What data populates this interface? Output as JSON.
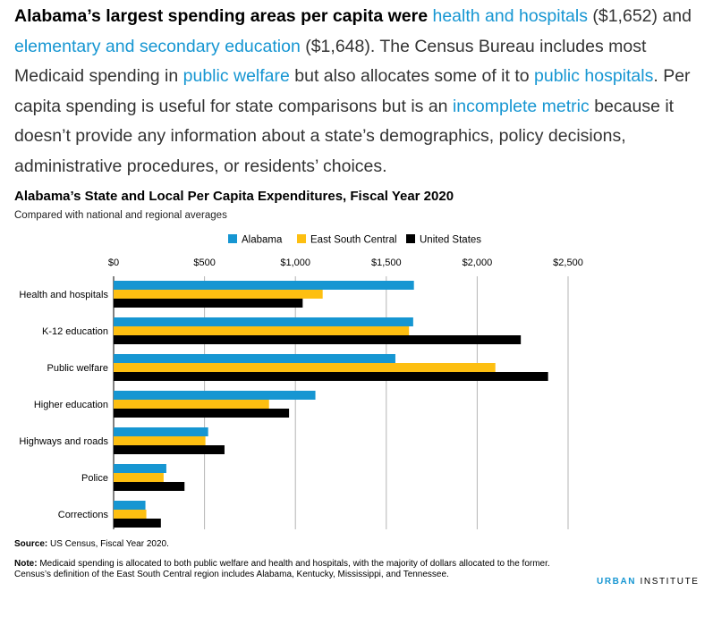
{
  "intro": {
    "lead": "Alabama’s largest spending areas per capita were",
    "link_health": "health and hospitals",
    "value_health": "($1,652)",
    "and": "and",
    "link_education": "elementary and secondary education",
    "value_education": "($1,648). The Census Bureau includes most Medicaid spending in",
    "link_welfare": "public welfare",
    "but_also": "but also allocates some of it to",
    "link_hospitals": "public hospitals",
    "per_capita": ". Per capita spending is useful for state comparisons but is an",
    "link_metric": "incomplete metric",
    "rest": "because it doesn’t provide any information about a state’s demographics, policy decisions, administrative procedures, or residents’ choices."
  },
  "footer": {
    "source_label": "Source:",
    "source_text": "US Census, Fiscal Year 2020.",
    "note_label": "Note:",
    "note_text": "Medicaid spending is allocated to both public welfare and health and hospitals, with the majority of dollars allocated to the former. Census’s definition of the East South Central region includes Alabama, Kentucky, Mississippi, and Tennessee.",
    "brand_accent": "URBAN",
    "brand_rest": "INSTITUTE"
  },
  "chart_data": {
    "type": "bar",
    "orientation": "horizontal",
    "title": "Alabama’s State and Local Per Capita Expenditures, Fiscal Year 2020",
    "subtitle": "Compared with national and regional averages",
    "categories": [
      "Health and hospitals",
      "K-12 education",
      "Public welfare",
      "Higher education",
      "Highways and roads",
      "Police",
      "Corrections"
    ],
    "series": [
      {
        "name": "Alabama",
        "color": "#1696d2",
        "values": [
          1652,
          1648,
          1550,
          1110,
          520,
          290,
          175
        ]
      },
      {
        "name": "East South Central",
        "color": "#fdbf11",
        "values": [
          1150,
          1625,
          2100,
          855,
          505,
          275,
          180
        ]
      },
      {
        "name": "United States",
        "color": "#000000",
        "values": [
          1040,
          2240,
          2390,
          965,
          610,
          390,
          260
        ]
      }
    ],
    "xlim": [
      0,
      2500
    ],
    "x_ticks": [
      0,
      500,
      1000,
      1500,
      2000,
      2500
    ],
    "x_tick_labels": [
      "$0",
      "$500",
      "$1,000",
      "$1,500",
      "$2,000",
      "$2,500"
    ],
    "grid": "vertical",
    "legend_position": "top"
  }
}
